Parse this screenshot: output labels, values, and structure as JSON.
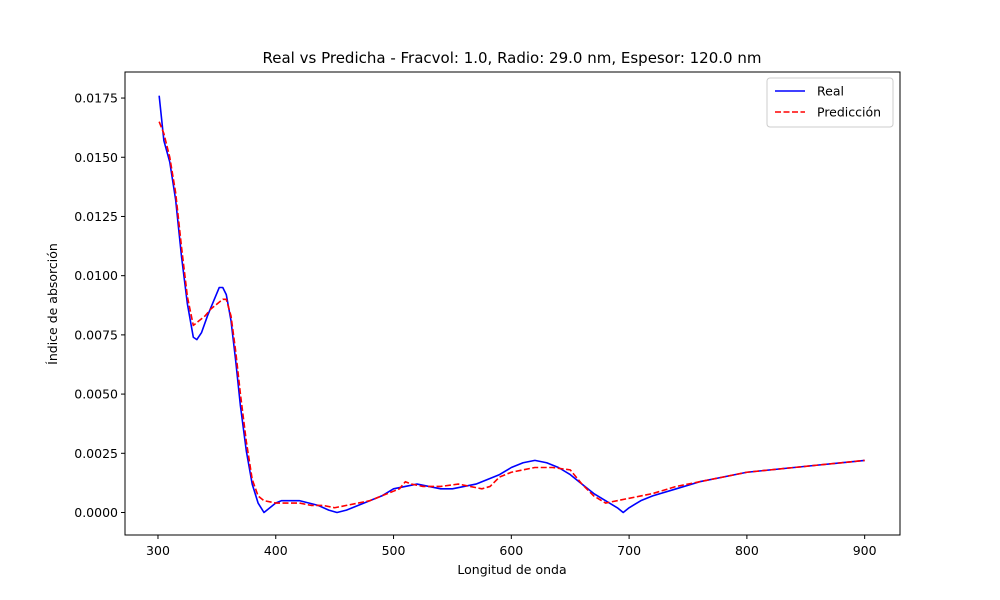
{
  "chart_data": {
    "type": "line",
    "title": "Real vs Predicha - Fracvol: 1.0, Radio: 29.0 nm, Espesor: 120.0 nm",
    "xlabel": "Longitud de onda",
    "ylabel": "Índice de absorción",
    "xlim": [
      272,
      930
    ],
    "ylim": [
      -0.00095,
      0.0186
    ],
    "xticks": [
      300,
      400,
      500,
      600,
      700,
      800,
      900
    ],
    "xtick_labels": [
      "300",
      "400",
      "500",
      "600",
      "700",
      "800",
      "900"
    ],
    "yticks": [
      0.0,
      0.0025,
      0.005,
      0.0075,
      0.01,
      0.0125,
      0.015,
      0.0175
    ],
    "ytick_labels": [
      "0.0000",
      "0.0025",
      "0.0050",
      "0.0075",
      "0.0100",
      "0.0125",
      "0.0150",
      "0.0175"
    ],
    "grid": false,
    "legend_position": "top-right",
    "series": [
      {
        "name": "Real",
        "color": "#0000ff",
        "style": "solid",
        "points": [
          [
            301,
            0.0176
          ],
          [
            305,
            0.0157
          ],
          [
            310,
            0.0148
          ],
          [
            315,
            0.0132
          ],
          [
            320,
            0.0108
          ],
          [
            325,
            0.0088
          ],
          [
            330,
            0.0074
          ],
          [
            333,
            0.0073
          ],
          [
            337,
            0.0076
          ],
          [
            342,
            0.0083
          ],
          [
            347,
            0.0089
          ],
          [
            352,
            0.0095
          ],
          [
            355,
            0.0095
          ],
          [
            358,
            0.0092
          ],
          [
            362,
            0.0081
          ],
          [
            366,
            0.0064
          ],
          [
            370,
            0.0045
          ],
          [
            375,
            0.0026
          ],
          [
            380,
            0.0012
          ],
          [
            385,
            0.0004
          ],
          [
            390,
            0.0
          ],
          [
            395,
            0.0002
          ],
          [
            400,
            0.0004
          ],
          [
            405,
            0.0005
          ],
          [
            412,
            0.0005
          ],
          [
            420,
            0.0005
          ],
          [
            428,
            0.0004
          ],
          [
            436,
            0.0003
          ],
          [
            445,
            0.0001
          ],
          [
            452,
            0.0
          ],
          [
            460,
            0.0001
          ],
          [
            470,
            0.0003
          ],
          [
            480,
            0.0005
          ],
          [
            490,
            0.0007
          ],
          [
            500,
            0.001
          ],
          [
            510,
            0.0011
          ],
          [
            520,
            0.0012
          ],
          [
            530,
            0.0011
          ],
          [
            540,
            0.001
          ],
          [
            550,
            0.001
          ],
          [
            560,
            0.0011
          ],
          [
            570,
            0.0012
          ],
          [
            580,
            0.0014
          ],
          [
            590,
            0.0016
          ],
          [
            600,
            0.0019
          ],
          [
            610,
            0.0021
          ],
          [
            620,
            0.0022
          ],
          [
            630,
            0.0021
          ],
          [
            640,
            0.0019
          ],
          [
            650,
            0.0016
          ],
          [
            660,
            0.0012
          ],
          [
            670,
            0.0008
          ],
          [
            680,
            0.0005
          ],
          [
            690,
            0.0002
          ],
          [
            695,
            0.0
          ],
          [
            700,
            0.0002
          ],
          [
            710,
            0.0005
          ],
          [
            720,
            0.0007
          ],
          [
            740,
            0.001
          ],
          [
            760,
            0.0013
          ],
          [
            780,
            0.0015
          ],
          [
            800,
            0.0017
          ],
          [
            820,
            0.0018
          ],
          [
            840,
            0.0019
          ],
          [
            860,
            0.002
          ],
          [
            880,
            0.0021
          ],
          [
            900,
            0.0022
          ]
        ]
      },
      {
        "name": "Predicción",
        "color": "#ff0000",
        "style": "dashed",
        "points": [
          [
            301,
            0.0165
          ],
          [
            305,
            0.016
          ],
          [
            310,
            0.015
          ],
          [
            315,
            0.0135
          ],
          [
            320,
            0.0112
          ],
          [
            325,
            0.0091
          ],
          [
            330,
            0.0079
          ],
          [
            335,
            0.0081
          ],
          [
            340,
            0.0083
          ],
          [
            345,
            0.0086
          ],
          [
            350,
            0.0088
          ],
          [
            355,
            0.009
          ],
          [
            358,
            0.009
          ],
          [
            362,
            0.0083
          ],
          [
            366,
            0.0068
          ],
          [
            370,
            0.005
          ],
          [
            375,
            0.003
          ],
          [
            380,
            0.0014
          ],
          [
            385,
            0.0007
          ],
          [
            390,
            0.0005
          ],
          [
            400,
            0.0004
          ],
          [
            410,
            0.0004
          ],
          [
            420,
            0.0004
          ],
          [
            430,
            0.0003
          ],
          [
            440,
            0.0003
          ],
          [
            450,
            0.0002
          ],
          [
            460,
            0.0003
          ],
          [
            470,
            0.0004
          ],
          [
            480,
            0.0005
          ],
          [
            490,
            0.0007
          ],
          [
            500,
            0.0009
          ],
          [
            505,
            0.001
          ],
          [
            510,
            0.0013
          ],
          [
            515,
            0.0012
          ],
          [
            525,
            0.0011
          ],
          [
            540,
            0.0011
          ],
          [
            555,
            0.0012
          ],
          [
            565,
            0.0011
          ],
          [
            575,
            0.001
          ],
          [
            582,
            0.0011
          ],
          [
            590,
            0.0015
          ],
          [
            600,
            0.0017
          ],
          [
            610,
            0.0018
          ],
          [
            620,
            0.0019
          ],
          [
            635,
            0.0019
          ],
          [
            650,
            0.0018
          ],
          [
            660,
            0.0012
          ],
          [
            670,
            0.0007
          ],
          [
            680,
            0.0004
          ],
          [
            690,
            0.0005
          ],
          [
            700,
            0.0006
          ],
          [
            710,
            0.0007
          ],
          [
            720,
            0.0008
          ],
          [
            740,
            0.0011
          ],
          [
            760,
            0.0013
          ],
          [
            780,
            0.0015
          ],
          [
            800,
            0.0017
          ],
          [
            820,
            0.0018
          ],
          [
            840,
            0.0019
          ],
          [
            860,
            0.002
          ],
          [
            880,
            0.0021
          ],
          [
            900,
            0.0022
          ]
        ]
      }
    ]
  }
}
